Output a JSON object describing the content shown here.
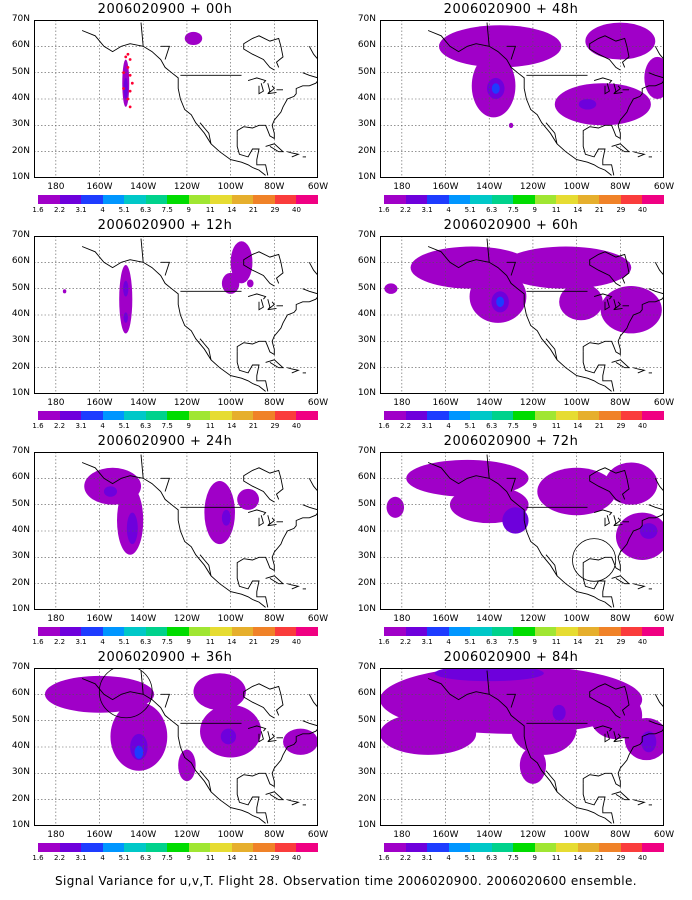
{
  "panels": [
    {
      "title": "2006020900 + 00h",
      "blobs": [
        {
          "lon": -148,
          "lat": 46,
          "rx": 1.6,
          "ry": 9,
          "level": 1
        },
        {
          "lon": -148,
          "lat": 44,
          "rx": 1,
          "ry": 4,
          "level": 2
        },
        {
          "lon": -117,
          "lat": 63,
          "rx": 4,
          "ry": 2.5,
          "level": 1
        }
      ],
      "circle": null,
      "dots": true
    },
    {
      "title": "2006020900 + 12h",
      "blobs": [
        {
          "lon": -148,
          "lat": 46,
          "rx": 3,
          "ry": 13,
          "level": 1
        },
        {
          "lon": -148,
          "lat": 50,
          "rx": 1.2,
          "ry": 3,
          "level": 2
        },
        {
          "lon": -148,
          "lat": 39,
          "rx": 1,
          "ry": 2,
          "level": 2
        },
        {
          "lon": -95,
          "lat": 60,
          "rx": 5,
          "ry": 8,
          "level": 1
        },
        {
          "lon": -100,
          "lat": 52,
          "rx": 4,
          "ry": 4,
          "level": 1
        },
        {
          "lon": -91,
          "lat": 52,
          "rx": 1.5,
          "ry": 1.5,
          "level": 1
        },
        {
          "lon": -176,
          "lat": 49,
          "rx": 0.8,
          "ry": 0.8,
          "level": 1
        }
      ],
      "circle": null,
      "dots": false
    },
    {
      "title": "2006020900 + 24h",
      "blobs": [
        {
          "lon": -154,
          "lat": 57,
          "rx": 13,
          "ry": 7,
          "level": 1
        },
        {
          "lon": -146,
          "lat": 44,
          "rx": 6,
          "ry": 13,
          "level": 1
        },
        {
          "lon": -145,
          "lat": 41,
          "rx": 2.5,
          "ry": 6,
          "level": 2
        },
        {
          "lon": -155,
          "lat": 55,
          "rx": 3,
          "ry": 2,
          "level": 2
        },
        {
          "lon": -105,
          "lat": 47,
          "rx": 7,
          "ry": 12,
          "level": 1
        },
        {
          "lon": -102,
          "lat": 45,
          "rx": 2,
          "ry": 3,
          "level": 2
        },
        {
          "lon": -92,
          "lat": 52,
          "rx": 5,
          "ry": 4,
          "level": 1
        }
      ],
      "circle": null,
      "dots": false
    },
    {
      "title": "2006020900 + 36h",
      "blobs": [
        {
          "lon": -160,
          "lat": 60,
          "rx": 25,
          "ry": 7,
          "level": 1
        },
        {
          "lon": -142,
          "lat": 44,
          "rx": 13,
          "ry": 13,
          "level": 1
        },
        {
          "lon": -142,
          "lat": 40,
          "rx": 4,
          "ry": 5,
          "level": 2
        },
        {
          "lon": -142,
          "lat": 38,
          "rx": 2,
          "ry": 2.5,
          "level": 3
        },
        {
          "lon": -100,
          "lat": 46,
          "rx": 14,
          "ry": 10,
          "level": 1
        },
        {
          "lon": -101,
          "lat": 44,
          "rx": 3.5,
          "ry": 3,
          "level": 2
        },
        {
          "lon": -105,
          "lat": 61,
          "rx": 12,
          "ry": 7,
          "level": 1
        },
        {
          "lon": -68,
          "lat": 42,
          "rx": 8,
          "ry": 5,
          "level": 1
        },
        {
          "lon": -175,
          "lat": 60,
          "rx": 4,
          "ry": 5,
          "level": 1
        },
        {
          "lon": -120,
          "lat": 33,
          "rx": 4,
          "ry": 6,
          "level": 1
        }
      ],
      "circle": {
        "lon": -148,
        "lat": 61,
        "r": 11
      },
      "dots": false
    },
    {
      "title": "2006020900 + 48h",
      "blobs": [
        {
          "lon": -135,
          "lat": 60,
          "rx": 28,
          "ry": 8,
          "level": 1
        },
        {
          "lon": -138,
          "lat": 45,
          "rx": 10,
          "ry": 12,
          "level": 1
        },
        {
          "lon": -137,
          "lat": 44,
          "rx": 4,
          "ry": 4,
          "level": 2
        },
        {
          "lon": -137,
          "lat": 44,
          "rx": 1.8,
          "ry": 2,
          "level": 3
        },
        {
          "lon": -88,
          "lat": 38,
          "rx": 22,
          "ry": 8,
          "level": 1
        },
        {
          "lon": -95,
          "lat": 38,
          "rx": 4,
          "ry": 2,
          "level": 2
        },
        {
          "lon": -80,
          "lat": 62,
          "rx": 16,
          "ry": 7,
          "level": 1
        },
        {
          "lon": -63,
          "lat": 48,
          "rx": 6,
          "ry": 8,
          "level": 1
        },
        {
          "lon": -130,
          "lat": 30,
          "rx": 1,
          "ry": 1,
          "level": 1
        }
      ],
      "circle": null,
      "dots": false
    },
    {
      "title": "2006020900 + 60h",
      "blobs": [
        {
          "lon": -148,
          "lat": 58,
          "rx": 28,
          "ry": 8,
          "level": 1
        },
        {
          "lon": -136,
          "lat": 47,
          "rx": 13,
          "ry": 10,
          "level": 1
        },
        {
          "lon": -135,
          "lat": 45,
          "rx": 4,
          "ry": 4,
          "level": 2
        },
        {
          "lon": -135,
          "lat": 45,
          "rx": 1.8,
          "ry": 2,
          "level": 3
        },
        {
          "lon": -105,
          "lat": 58,
          "rx": 30,
          "ry": 8,
          "level": 1
        },
        {
          "lon": -75,
          "lat": 42,
          "rx": 14,
          "ry": 9,
          "level": 1
        },
        {
          "lon": -98,
          "lat": 45,
          "rx": 10,
          "ry": 7,
          "level": 1
        },
        {
          "lon": -185,
          "lat": 50,
          "rx": 3,
          "ry": 2,
          "level": 1
        }
      ],
      "circle": null,
      "dots": false
    },
    {
      "title": "2006020900 + 72h",
      "blobs": [
        {
          "lon": -150,
          "lat": 60,
          "rx": 28,
          "ry": 7,
          "level": 1
        },
        {
          "lon": -140,
          "lat": 50,
          "rx": 18,
          "ry": 7,
          "level": 1
        },
        {
          "lon": -128,
          "lat": 44,
          "rx": 6,
          "ry": 5,
          "level": 2
        },
        {
          "lon": -100,
          "lat": 55,
          "rx": 18,
          "ry": 9,
          "level": 1
        },
        {
          "lon": -75,
          "lat": 58,
          "rx": 12,
          "ry": 8,
          "level": 1
        },
        {
          "lon": -70,
          "lat": 38,
          "rx": 12,
          "ry": 9,
          "level": 1
        },
        {
          "lon": -67,
          "lat": 40,
          "rx": 4,
          "ry": 3,
          "level": 2
        },
        {
          "lon": -183,
          "lat": 49,
          "rx": 4,
          "ry": 4,
          "level": 1
        }
      ],
      "circle": {
        "lon": -92,
        "lat": 29,
        "r": 9
      },
      "dots": false
    },
    {
      "title": "2006020900 + 84h",
      "blobs": [
        {
          "lon": -130,
          "lat": 58,
          "rx": 60,
          "ry": 13,
          "level": 1
        },
        {
          "lon": -168,
          "lat": 45,
          "rx": 22,
          "ry": 8,
          "level": 1
        },
        {
          "lon": -115,
          "lat": 47,
          "rx": 15,
          "ry": 10,
          "level": 1
        },
        {
          "lon": -108,
          "lat": 53,
          "rx": 3,
          "ry": 3,
          "level": 2
        },
        {
          "lon": -82,
          "lat": 52,
          "rx": 12,
          "ry": 9,
          "level": 1
        },
        {
          "lon": -68,
          "lat": 43,
          "rx": 10,
          "ry": 8,
          "level": 1
        },
        {
          "lon": -67,
          "lat": 42,
          "rx": 3.5,
          "ry": 4,
          "level": 2
        },
        {
          "lon": -140,
          "lat": 68,
          "rx": 25,
          "ry": 3,
          "level": 2
        },
        {
          "lon": -120,
          "lat": 33,
          "rx": 6,
          "ry": 7,
          "level": 1
        }
      ],
      "circle": null,
      "dots": false
    }
  ],
  "x_labels": [
    "180",
    "160W",
    "140W",
    "120W",
    "100W",
    "80W",
    "60W"
  ],
  "y_labels": [
    "70N",
    "60N",
    "50N",
    "40N",
    "30N",
    "20N",
    "10N"
  ],
  "lon_range": [
    -190,
    -60
  ],
  "lat_range": [
    10,
    70
  ],
  "colorbar": {
    "labels": [
      "1.6",
      "2.2",
      "3.1",
      "4",
      "5.1",
      "6.3",
      "7.5",
      "9",
      "11",
      "14",
      "21",
      "29",
      "40"
    ],
    "colors": [
      "#a000c8",
      "#6e00dc",
      "#1e3cff",
      "#0096ff",
      "#00c8c8",
      "#00d28c",
      "#00dc00",
      "#a0e632",
      "#e6dc32",
      "#e6af2d",
      "#f08228",
      "#fa3c3c",
      "#f00082"
    ]
  },
  "level_colors": [
    "#a000c8",
    "#6e00dc",
    "#1e3cff",
    "#00a0ff"
  ],
  "footer": "Signal Variance for u,v,T. Flight 28. Observation time 2006020900. 2006020600 ensemble."
}
